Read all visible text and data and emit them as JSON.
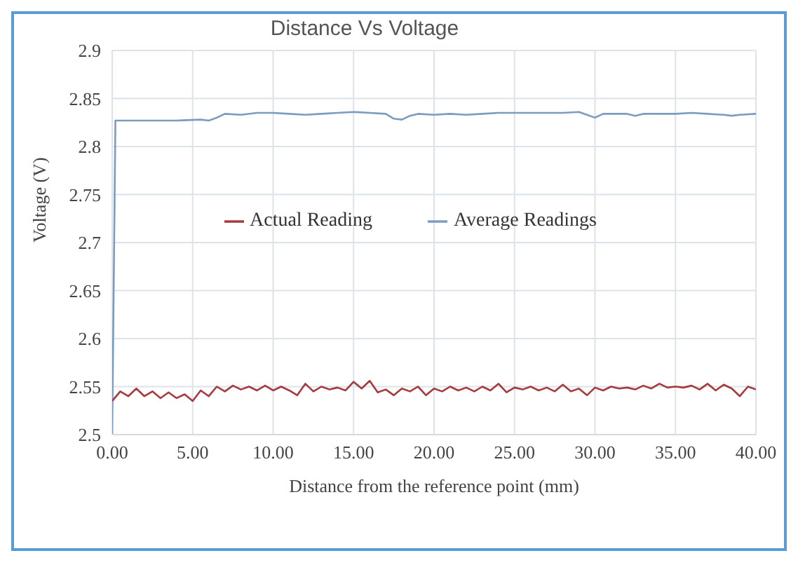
{
  "chart_data": {
    "type": "line",
    "title": "Distance Vs Voltage",
    "xlabel": "Distance from  the reference point (mm)",
    "ylabel": "Voltage (V)",
    "xlim": [
      0,
      40
    ],
    "xticks": [
      {
        "value": 0,
        "label": "0.00"
      },
      {
        "value": 5,
        "label": "5.00"
      },
      {
        "value": 10,
        "label": "10.00"
      },
      {
        "value": 15,
        "label": "15.00"
      },
      {
        "value": 20,
        "label": "20.00"
      },
      {
        "value": 25,
        "label": "25.00"
      },
      {
        "value": 30,
        "label": "30.00"
      },
      {
        "value": 35,
        "label": "35.00"
      },
      {
        "value": 40,
        "label": "40.00"
      }
    ],
    "ylim": [
      2.5,
      2.9
    ],
    "yticks": [
      2.5,
      2.55,
      2.6,
      2.65,
      2.7,
      2.75,
      2.8,
      2.85,
      2.9
    ],
    "grid": true,
    "legend": "top",
    "marker": "none",
    "line_style": "solid",
    "series": [
      {
        "name": "Average Readings",
        "color": "#7b9cc0",
        "x": [
          0,
          0.2,
          2,
          4,
          5.5,
          6,
          6.5,
          7,
          8,
          9,
          10,
          11,
          12,
          13,
          14,
          15,
          16,
          17,
          17.5,
          18,
          18.5,
          19,
          20,
          21,
          22,
          23,
          24,
          25,
          26,
          27,
          28,
          29,
          29.5,
          30,
          30.5,
          31,
          32,
          32.5,
          33,
          34,
          35,
          36,
          37,
          38,
          38.5,
          39,
          40
        ],
        "values": [
          2.5,
          2.827,
          2.827,
          2.827,
          2.828,
          2.827,
          2.83,
          2.834,
          2.833,
          2.835,
          2.835,
          2.834,
          2.833,
          2.834,
          2.835,
          2.836,
          2.835,
          2.834,
          2.829,
          2.828,
          2.832,
          2.834,
          2.833,
          2.834,
          2.833,
          2.834,
          2.835,
          2.835,
          2.835,
          2.835,
          2.835,
          2.836,
          2.833,
          2.83,
          2.834,
          2.834,
          2.834,
          2.832,
          2.834,
          2.834,
          2.834,
          2.835,
          2.834,
          2.833,
          2.832,
          2.833,
          2.834
        ]
      },
      {
        "name": "Actual Reading",
        "color": "#a63a3f",
        "x": [
          0,
          0.5,
          1,
          1.5,
          2,
          2.5,
          3,
          3.5,
          4,
          4.5,
          5,
          5.5,
          6,
          6.5,
          7,
          7.5,
          8,
          8.5,
          9,
          9.5,
          10,
          10.5,
          11,
          11.5,
          12,
          12.5,
          13,
          13.5,
          14,
          14.5,
          15,
          15.5,
          16,
          16.5,
          17,
          17.5,
          18,
          18.5,
          19,
          19.5,
          20,
          20.5,
          21,
          21.5,
          22,
          22.5,
          23,
          23.5,
          24,
          24.5,
          25,
          25.5,
          26,
          26.5,
          27,
          27.5,
          28,
          28.5,
          29,
          29.5,
          30,
          30.5,
          31,
          31.5,
          32,
          32.5,
          33,
          33.5,
          34,
          34.5,
          35,
          35.5,
          36,
          36.5,
          37,
          37.5,
          38,
          38.5,
          39,
          39.5,
          40
        ],
        "values": [
          2.535,
          2.545,
          2.54,
          2.548,
          2.54,
          2.545,
          2.538,
          2.544,
          2.538,
          2.542,
          2.535,
          2.546,
          2.54,
          2.55,
          2.545,
          2.551,
          2.547,
          2.55,
          2.546,
          2.551,
          2.546,
          2.55,
          2.546,
          2.541,
          2.553,
          2.545,
          2.55,
          2.547,
          2.549,
          2.546,
          2.555,
          2.548,
          2.556,
          2.544,
          2.547,
          2.541,
          2.548,
          2.545,
          2.55,
          2.541,
          2.548,
          2.545,
          2.55,
          2.546,
          2.549,
          2.545,
          2.55,
          2.546,
          2.553,
          2.544,
          2.549,
          2.547,
          2.55,
          2.546,
          2.549,
          2.545,
          2.552,
          2.545,
          2.548,
          2.541,
          2.549,
          2.546,
          2.55,
          2.548,
          2.549,
          2.547,
          2.551,
          2.548,
          2.553,
          2.549,
          2.55,
          2.549,
          2.551,
          2.547,
          2.553,
          2.546,
          2.552,
          2.548,
          2.54,
          2.55,
          2.547
        ]
      }
    ]
  }
}
